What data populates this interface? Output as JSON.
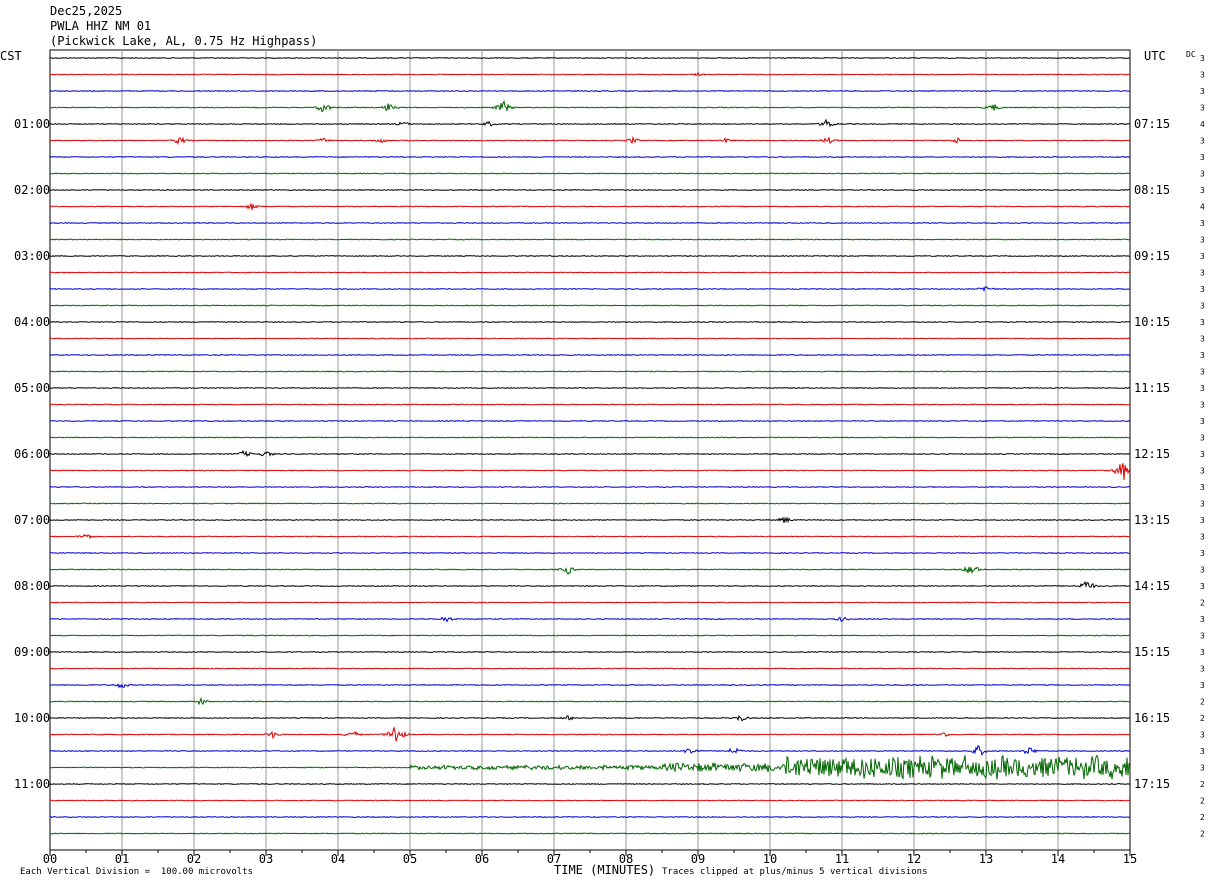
{
  "header": {
    "date": "Dec25,2025",
    "station": "PWLA HHZ NM 01",
    "location": "(Pickwick Lake, AL, 0.75 Hz Highpass)"
  },
  "left_tz": "CST",
  "right_tz": "UTC",
  "dc_label": "DC",
  "footer": {
    "scale": "Each Vertical Division =  100.00 microvolts",
    "xlabel": "TIME (MINUTES)",
    "clip": "Traces clipped at plus/minus 5 vertical divisions"
  },
  "chart_data": {
    "type": "line",
    "title": "PWLA HHZ NM 01",
    "xlabel": "TIME (MINUTES)",
    "xlim": [
      0,
      15
    ],
    "x_ticks": [
      "00",
      "01",
      "02",
      "03",
      "04",
      "05",
      "06",
      "07",
      "08",
      "09",
      "10",
      "11",
      "12",
      "13",
      "14",
      "15"
    ],
    "trace_count": 48,
    "trace_colors": [
      "#000000",
      "#dd0000",
      "#0000cc",
      "#006600"
    ],
    "left_hour_labels": [
      "01:00",
      "02:00",
      "03:00",
      "04:00",
      "05:00",
      "06:00",
      "07:00",
      "08:00",
      "09:00",
      "10:00",
      "11:00"
    ],
    "right_hour_labels": [
      "07:15",
      "08:15",
      "09:15",
      "10:15",
      "11:15",
      "12:15",
      "13:15",
      "14:15",
      "15:15",
      "16:15",
      "17:15"
    ],
    "dc_values": [
      "3",
      "3",
      "3",
      "3",
      "4",
      "3",
      "3",
      "3",
      "3",
      "4",
      "3",
      "3",
      "3",
      "3",
      "3",
      "3",
      "3",
      "3",
      "3",
      "3",
      "3",
      "3",
      "3",
      "3",
      "3",
      "3",
      "3",
      "3",
      "3",
      "3",
      "3",
      "3",
      "3",
      "2",
      "3",
      "3",
      "3",
      "3",
      "3",
      "2",
      "2",
      "3",
      "3",
      "3",
      "2",
      "2",
      "2",
      "2"
    ],
    "events": [
      {
        "trace": 1,
        "minute": 9.0,
        "amplitude": 0.4
      },
      {
        "trace": 3,
        "minute": 3.8,
        "amplitude": 1.2
      },
      {
        "trace": 3,
        "minute": 4.7,
        "amplitude": 1.0
      },
      {
        "trace": 3,
        "minute": 6.3,
        "amplitude": 1.5
      },
      {
        "trace": 3,
        "minute": 13.1,
        "amplitude": 0.9
      },
      {
        "trace": 4,
        "minute": 4.9,
        "amplitude": 0.6
      },
      {
        "trace": 4,
        "minute": 6.1,
        "amplitude": 0.6
      },
      {
        "trace": 4,
        "minute": 10.8,
        "amplitude": 1.2
      },
      {
        "trace": 5,
        "minute": 1.8,
        "amplitude": 0.9
      },
      {
        "trace": 5,
        "minute": 3.8,
        "amplitude": 0.6
      },
      {
        "trace": 5,
        "minute": 4.6,
        "amplitude": 0.6
      },
      {
        "trace": 5,
        "minute": 8.1,
        "amplitude": 0.7
      },
      {
        "trace": 5,
        "minute": 9.4,
        "amplitude": 0.6
      },
      {
        "trace": 5,
        "minute": 10.8,
        "amplitude": 0.9
      },
      {
        "trace": 5,
        "minute": 12.6,
        "amplitude": 0.7
      },
      {
        "trace": 9,
        "minute": 2.8,
        "amplitude": 0.8
      },
      {
        "trace": 14,
        "minute": 13.0,
        "amplitude": 0.8
      },
      {
        "trace": 24,
        "minute": 2.7,
        "amplitude": 0.8
      },
      {
        "trace": 24,
        "minute": 3.0,
        "amplitude": 0.8
      },
      {
        "trace": 25,
        "minute": 14.9,
        "amplitude": 2.5
      },
      {
        "trace": 28,
        "minute": 10.2,
        "amplitude": 0.8
      },
      {
        "trace": 29,
        "minute": 0.5,
        "amplitude": 0.8
      },
      {
        "trace": 31,
        "minute": 7.2,
        "amplitude": 1.0
      },
      {
        "trace": 31,
        "minute": 12.8,
        "amplitude": 1.4
      },
      {
        "trace": 32,
        "minute": 14.4,
        "amplitude": 1.5
      },
      {
        "trace": 34,
        "minute": 5.5,
        "amplitude": 0.8
      },
      {
        "trace": 34,
        "minute": 11.0,
        "amplitude": 0.6
      },
      {
        "trace": 38,
        "minute": 1.0,
        "amplitude": 0.8
      },
      {
        "trace": 39,
        "minute": 2.1,
        "amplitude": 0.8
      },
      {
        "trace": 40,
        "minute": 7.2,
        "amplitude": 0.6
      },
      {
        "trace": 40,
        "minute": 9.6,
        "amplitude": 0.8
      },
      {
        "trace": 41,
        "minute": 3.1,
        "amplitude": 0.8
      },
      {
        "trace": 41,
        "minute": 4.2,
        "amplitude": 1.0
      },
      {
        "trace": 41,
        "minute": 4.8,
        "amplitude": 2.5
      },
      {
        "trace": 41,
        "minute": 12.4,
        "amplitude": 0.7
      },
      {
        "trace": 42,
        "minute": 8.9,
        "amplitude": 1.0
      },
      {
        "trace": 42,
        "minute": 9.5,
        "amplitude": 1.0
      },
      {
        "trace": 42,
        "minute": 12.9,
        "amplitude": 1.4
      },
      {
        "trace": 42,
        "minute": 13.6,
        "amplitude": 1.0
      }
    ],
    "noise_bursts": [
      {
        "trace": 43,
        "from": 5.0,
        "to": 8.5,
        "amplitude": 0.5
      },
      {
        "trace": 43,
        "from": 8.5,
        "to": 10.2,
        "amplitude": 1.0
      },
      {
        "trace": 43,
        "from": 10.2,
        "to": 15.0,
        "amplitude": 2.6
      }
    ]
  }
}
